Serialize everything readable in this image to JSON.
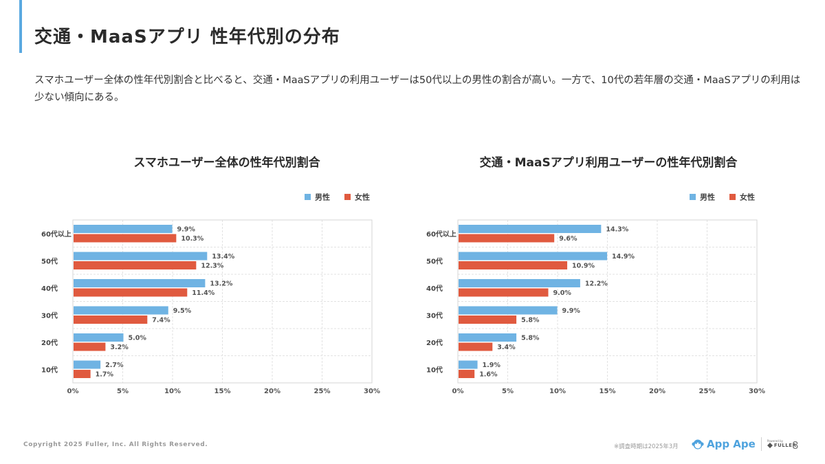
{
  "header": {
    "title": "交通・MaaSアプリ 性年代別の分布",
    "description": "スマホユーザー全体の性年代別割合と比べると、交通・MaaSアプリの利用ユーザーは50代以上の男性の割合が高い。一方で、10代の若年層の交通・MaaSアプリの利用は少ない傾向にある。"
  },
  "colors": {
    "accent": "#5aa9e0",
    "male": "#6fb3e3",
    "female": "#e05a3f"
  },
  "chart_data": [
    {
      "type": "bar",
      "orientation": "horizontal",
      "title": "スマホユーザー全体の性年代別割合",
      "categories": [
        "60代以上",
        "50代",
        "40代",
        "30代",
        "20代",
        "10代"
      ],
      "series": [
        {
          "name": "男性",
          "values": [
            9.9,
            13.4,
            13.2,
            9.5,
            5.0,
            2.7
          ]
        },
        {
          "name": "女性",
          "values": [
            10.3,
            12.3,
            11.4,
            7.4,
            3.2,
            1.7
          ]
        }
      ],
      "xlim": [
        0,
        30
      ],
      "xticks": [
        "0%",
        "5%",
        "10%",
        "15%",
        "20%",
        "25%",
        "30%"
      ],
      "legend": "top-right",
      "grid": true
    },
    {
      "type": "bar",
      "orientation": "horizontal",
      "title": "交通・MaaSアプリ利用ユーザーの性年代別割合",
      "categories": [
        "60代以上",
        "50代",
        "40代",
        "30代",
        "20代",
        "10代"
      ],
      "series": [
        {
          "name": "男性",
          "values": [
            14.3,
            14.9,
            12.2,
            9.9,
            5.8,
            1.9
          ]
        },
        {
          "name": "女性",
          "values": [
            9.6,
            10.9,
            9.0,
            5.8,
            3.4,
            1.6
          ]
        }
      ],
      "xlim": [
        0,
        30
      ],
      "xticks": [
        "0%",
        "5%",
        "10%",
        "15%",
        "20%",
        "25%",
        "30%"
      ],
      "legend": "top-right",
      "grid": true
    }
  ],
  "footer": {
    "copyright": "Copyright 2025 Fuller, Inc. All Rights Reserved.",
    "note": "※調査時期は2025年3月",
    "logo_text": "App Ape",
    "powered_by": "Powered by",
    "fuller": "FULLER",
    "page_number": "8"
  }
}
